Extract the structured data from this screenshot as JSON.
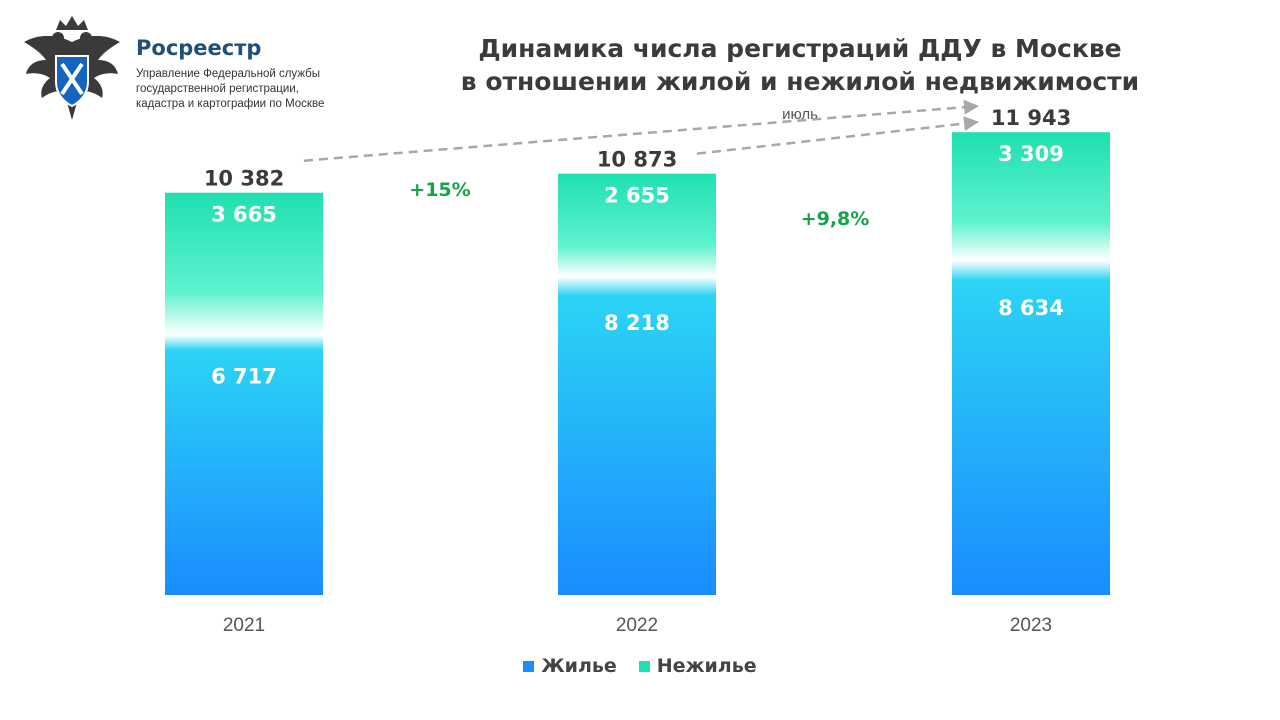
{
  "header": {
    "brand_name": "Росреестр",
    "brand_sub_lines": [
      "Управление Федеральной службы",
      "государственной регистрации,",
      "кадастра и картографии по Москве"
    ],
    "title_lines": [
      "Динамика числа регистраций ДДУ в Москве",
      "в отношении жилой и нежилой недвижимости"
    ],
    "subtitle": "июль"
  },
  "colors": {
    "residential": "#1a8cff",
    "nonresidential": "#1fe0b0",
    "growth_label": "#16a34a",
    "arrow": "#a8a8a8",
    "text": "#3b3b3b"
  },
  "chart_data": {
    "type": "bar",
    "stacked": true,
    "categories": [
      "2021",
      "2022",
      "2023"
    ],
    "series": [
      {
        "name": "Жилье",
        "values": [
          6717,
          8218,
          8634
        ],
        "labels": [
          "6 717",
          "8 218",
          "8 634"
        ]
      },
      {
        "name": "Нежилье",
        "values": [
          3665,
          2655,
          3309
        ],
        "labels": [
          "3 665",
          "2 655",
          "3 309"
        ]
      }
    ],
    "totals": [
      10382,
      10873,
      11943
    ],
    "total_labels": [
      "10 382",
      "10 873",
      "11 943"
    ],
    "ylim": [
      0,
      12000
    ],
    "growth_annotations": [
      {
        "from": "2021",
        "to": "2023",
        "label": "+15%"
      },
      {
        "from": "2022",
        "to": "2023",
        "label": "+9,8%"
      }
    ],
    "legend": [
      "Жилье",
      "Нежилье"
    ],
    "legend_position": "bottom"
  }
}
